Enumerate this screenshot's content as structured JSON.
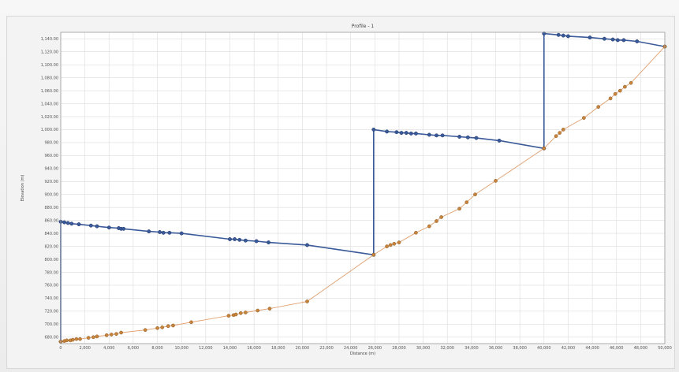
{
  "chart_data": {
    "type": "line",
    "title": "Profile - 1",
    "xlabel": "Distance (m)",
    "ylabel": "Elevation (m)",
    "xlim": [
      0,
      50000
    ],
    "ylim": [
      670,
      1150
    ],
    "x_ticks": [
      0,
      2000,
      4000,
      6000,
      8000,
      10000,
      12000,
      14000,
      16000,
      18000,
      20000,
      22000,
      24000,
      26000,
      28000,
      30000,
      32000,
      34000,
      36000,
      38000,
      40000,
      42000,
      44000,
      46000,
      48000,
      50000
    ],
    "x_tick_labels": [
      "0",
      "2,000",
      "4,000",
      "6,000",
      "8,000",
      "10,000",
      "12,000",
      "14,000",
      "16,000",
      "18,000",
      "20,000",
      "22,000",
      "24,000",
      "26,000",
      "28,000",
      "30,000",
      "32,000",
      "34,000",
      "36,000",
      "38,000",
      "40,000",
      "42,000",
      "44,000",
      "46,000",
      "48,000",
      "50,000"
    ],
    "y_ticks": [
      680,
      700,
      720,
      740,
      760,
      780,
      800,
      820,
      840,
      860,
      880,
      900,
      920,
      940,
      960,
      980,
      1000,
      1020,
      1040,
      1060,
      1080,
      1100,
      1120,
      1140
    ],
    "y_tick_labels": [
      "680.00",
      "700.00",
      "720.00",
      "740.00",
      "760.00",
      "780.00",
      "800.00",
      "820.00",
      "840.00",
      "860.00",
      "880.00",
      "900.00",
      "920.00",
      "940.00",
      "960.00",
      "980.00",
      "1,000.00",
      "1,020.00",
      "1,040.00",
      "1,060.00",
      "1,080.00",
      "1,100.00",
      "1,120.00",
      "1,140.00"
    ],
    "grid": true,
    "series": [
      {
        "color": "#3a5a9a",
        "style": "line-markers",
        "x": [
          0,
          0,
          300,
          600,
          900,
          1500,
          2500,
          3000,
          4000,
          4800,
          5000,
          5200,
          7300,
          8200,
          8500,
          9000,
          10000,
          14000,
          14400,
          14800,
          15300,
          16200,
          17200,
          20400,
          25900,
          25900,
          27000,
          27800,
          28200,
          28600,
          29000,
          29400,
          30500,
          31100,
          31600,
          33000,
          33700,
          34400,
          36300,
          40000,
          40000,
          41200,
          41600,
          42000,
          43800,
          45000,
          45700,
          46100,
          46600,
          47700,
          50000
        ],
        "y": [
          673,
          858,
          857,
          856,
          855,
          854,
          852,
          851,
          849,
          848,
          847,
          847,
          843,
          842,
          841,
          841,
          840,
          831,
          831,
          830,
          829,
          828,
          826,
          822,
          807,
          1000,
          997,
          996,
          995,
          995,
          994,
          994,
          992,
          991,
          991,
          989,
          988,
          987,
          983,
          971,
          1148,
          1146,
          1145,
          1144,
          1142,
          1140,
          1139,
          1138,
          1138,
          1136,
          1128
        ]
      },
      {
        "color": "#e0a070",
        "marker": "#c8843a",
        "style": "line-markers",
        "x": [
          0,
          300,
          500,
          800,
          1000,
          1300,
          1600,
          2300,
          2700,
          3000,
          3800,
          4200,
          4600,
          5000,
          7000,
          8000,
          8400,
          8900,
          9300,
          10800,
          13900,
          14300,
          14500,
          14900,
          15300,
          16300,
          17300,
          20400,
          25900,
          27000,
          27300,
          27600,
          28000,
          29400,
          30500,
          31100,
          31500,
          33000,
          33600,
          34300,
          36000,
          40000,
          41000,
          41300,
          41600,
          43300,
          44500,
          45500,
          45900,
          46300,
          46700,
          47200,
          50000
        ],
        "y": [
          673,
          674,
          675,
          675,
          676,
          677,
          677,
          679,
          680,
          681,
          683,
          684,
          685,
          687,
          691,
          694,
          695,
          697,
          698,
          703,
          713,
          714,
          715,
          717,
          718,
          721,
          724,
          735,
          807,
          820,
          822,
          824,
          826,
          841,
          851,
          859,
          865,
          878,
          888,
          900,
          921,
          971,
          990,
          995,
          1000,
          1018,
          1035,
          1048,
          1055,
          1060,
          1066,
          1072,
          1128
        ]
      }
    ]
  }
}
